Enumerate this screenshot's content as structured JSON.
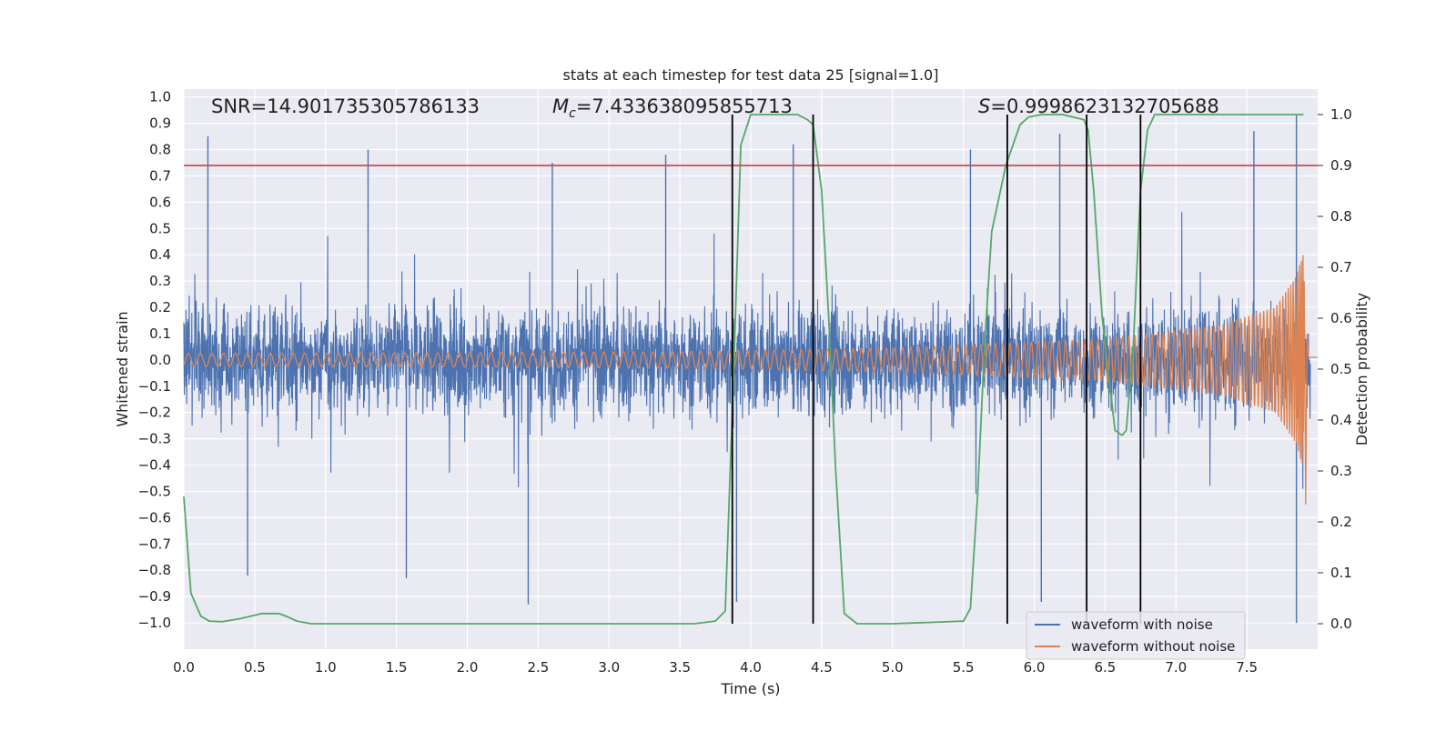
{
  "chart_data": {
    "type": "line",
    "title": "stats at each timestep for test data 25 [signal=1.0]",
    "xlabel": "Time (s)",
    "ylabel": "Whitened strain",
    "y2label": "Detection probability",
    "xlim": [
      0.0,
      8.0
    ],
    "ylim": [
      -1.1,
      1.03
    ],
    "y2lim": [
      -0.05,
      1.05
    ],
    "x_ticks": [
      "0.0",
      "0.5",
      "1.0",
      "1.5",
      "2.0",
      "2.5",
      "3.0",
      "3.5",
      "4.0",
      "4.5",
      "5.0",
      "5.5",
      "6.0",
      "6.5",
      "7.0",
      "7.5"
    ],
    "y_ticks": [
      "1.0",
      "0.9",
      "0.8",
      "0.7",
      "0.6",
      "0.5",
      "0.4",
      "0.3",
      "0.2",
      "0.1",
      "0.0",
      "-0.1",
      "-0.2",
      "-0.3",
      "-0.4",
      "-0.5",
      "-0.6",
      "-0.7",
      "-0.8",
      "-0.9",
      "-1.0"
    ],
    "y2_ticks": [
      "1.0",
      "0.9",
      "0.8",
      "0.7",
      "0.6",
      "0.5",
      "0.4",
      "0.3",
      "0.2",
      "0.1",
      "0.0"
    ],
    "annotations": {
      "snr": "SNR=14.901735305786133",
      "mc_symbol": "M",
      "mc_sub": "c",
      "mc_value": "=7.433638095855713",
      "s_symbol": "S",
      "s_value": "=0.9998623132705688"
    },
    "threshold": {
      "value": 0.9,
      "axis": "y2",
      "color": "#c44e52"
    },
    "vertical_markers": [
      3.87,
      4.44,
      5.81,
      6.37,
      6.75
    ],
    "series": [
      {
        "name": "waveform with noise",
        "color": "#4c72b0",
        "axis": "y",
        "description": "dense noisy whitened strain, amplitude about +/-0.4 with spikes to about +/-0.9",
        "spike_peaks": [
          [
            0.17,
            0.85
          ],
          [
            1.3,
            0.8
          ],
          [
            2.6,
            0.75
          ],
          [
            3.4,
            0.78
          ],
          [
            4.3,
            0.82
          ],
          [
            5.55,
            0.8
          ],
          [
            6.18,
            0.86
          ],
          [
            7.55,
            0.87
          ],
          [
            7.85,
            0.93
          ],
          [
            0.45,
            -0.82
          ],
          [
            1.57,
            -0.83
          ],
          [
            2.43,
            -0.93
          ],
          [
            3.9,
            -0.92
          ],
          [
            6.05,
            -0.92
          ],
          [
            7.85,
            -1.0
          ]
        ]
      },
      {
        "name": "waveform without noise",
        "color": "#dd8452",
        "axis": "y",
        "description": "chirp signal increasing in frequency and amplitude until merger near 7.93 s",
        "amplitude_points": [
          [
            0.0,
            0.025
          ],
          [
            2.0,
            0.027
          ],
          [
            3.5,
            0.032
          ],
          [
            5.0,
            0.045
          ],
          [
            6.5,
            0.08
          ],
          [
            7.3,
            0.13
          ],
          [
            7.7,
            0.2
          ],
          [
            7.85,
            0.32
          ],
          [
            7.92,
            0.46
          ]
        ],
        "merger_time": 7.93
      },
      {
        "name": "detection probability",
        "color": "#55a868",
        "axis": "y2",
        "x": [
          0.0,
          0.05,
          0.12,
          0.18,
          0.27,
          0.4,
          0.55,
          0.67,
          0.72,
          0.8,
          0.9,
          1.2,
          2.0,
          3.0,
          3.6,
          3.75,
          3.82,
          3.88,
          3.93,
          4.0,
          4.15,
          4.33,
          4.4,
          4.44,
          4.5,
          4.55,
          4.6,
          4.66,
          4.75,
          5.0,
          5.5,
          5.55,
          5.6,
          5.65,
          5.7,
          5.8,
          5.9,
          5.96,
          6.05,
          6.2,
          6.35,
          6.38,
          6.42,
          6.48,
          6.57,
          6.62,
          6.65,
          6.7,
          6.75,
          6.8,
          6.85,
          6.9,
          7.0,
          7.5,
          7.9
        ],
        "values": [
          0.25,
          0.06,
          0.015,
          0.005,
          0.004,
          0.01,
          0.02,
          0.02,
          0.015,
          0.005,
          0.0,
          0.0,
          0.0,
          0.0,
          0.0,
          0.005,
          0.025,
          0.5,
          0.94,
          1.0,
          1.0,
          1.0,
          0.99,
          0.98,
          0.85,
          0.6,
          0.3,
          0.02,
          0.0,
          0.0,
          0.005,
          0.03,
          0.25,
          0.55,
          0.77,
          0.9,
          0.98,
          0.995,
          1.0,
          1.0,
          0.99,
          0.97,
          0.85,
          0.6,
          0.38,
          0.37,
          0.38,
          0.55,
          0.85,
          0.97,
          1.0,
          1.0,
          1.0,
          1.0,
          1.0
        ]
      }
    ],
    "legend": {
      "position": "lower-right",
      "entries": [
        {
          "label": "waveform with noise",
          "color": "#4c72b0"
        },
        {
          "label": "waveform without noise",
          "color": "#dd8452"
        }
      ]
    }
  }
}
